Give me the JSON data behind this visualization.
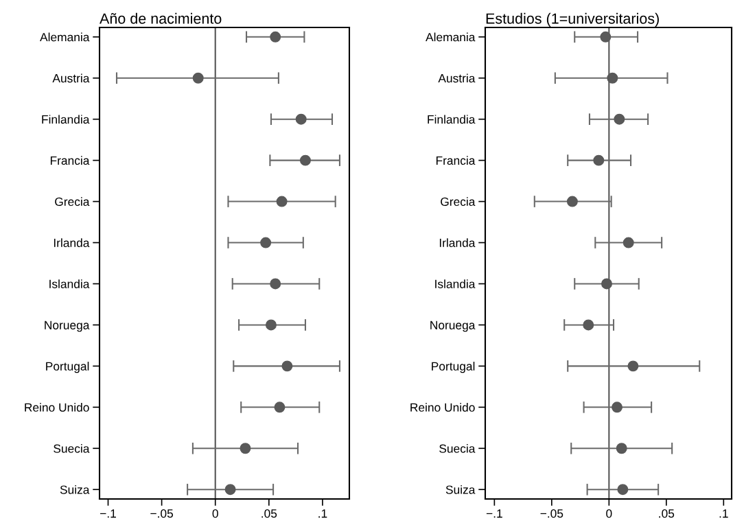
{
  "chart_data": [
    {
      "type": "scatter",
      "orientation": "horizontal",
      "title": "Año de nacimiento",
      "categories": [
        "Alemania",
        "Austria",
        "Finlandia",
        "Francia",
        "Grecia",
        "Irlanda",
        "Islandia",
        "Noruega",
        "Portugal",
        "Reino Unido",
        "Suecia",
        "Suiza"
      ],
      "series": [
        {
          "color": "#595959",
          "values": [
            0.056,
            -0.016,
            0.08,
            0.084,
            0.062,
            0.047,
            0.056,
            0.052,
            0.067,
            0.06,
            0.028,
            0.014
          ],
          "errors": [
            [
              0.029,
              0.083
            ],
            [
              -0.092,
              0.059
            ],
            [
              0.052,
              0.109
            ],
            [
              0.051,
              0.116
            ],
            [
              0.012,
              0.112
            ],
            [
              0.012,
              0.082
            ],
            [
              0.016,
              0.097
            ],
            [
              0.022,
              0.084
            ],
            [
              0.017,
              0.116
            ],
            [
              0.024,
              0.097
            ],
            [
              -0.021,
              0.077
            ],
            [
              -0.026,
              0.054
            ]
          ]
        }
      ],
      "xlim": [
        -0.108,
        0.125
      ],
      "xticks": [
        {
          "value": -0.1,
          "label": "−.1"
        },
        {
          "value": -0.05,
          "label": "−.05"
        },
        {
          "value": 0,
          "label": "0"
        },
        {
          "value": 0.05,
          "label": ".05"
        },
        {
          "value": 0.1,
          "label": ".1"
        }
      ],
      "ref_lines": [
        {
          "axis": "x",
          "value": 0,
          "color": "#555555"
        }
      ],
      "marker": "circle",
      "grid": false,
      "legend": false
    },
    {
      "type": "scatter",
      "orientation": "horizontal",
      "title": "Estudios (1=universitarios)",
      "categories": [
        "Alemania",
        "Austria",
        "Finlandia",
        "Francia",
        "Grecia",
        "Irlanda",
        "Islandia",
        "Noruega",
        "Portugal",
        "Reino Unido",
        "Suecia",
        "Suiza"
      ],
      "series": [
        {
          "color": "#595959",
          "values": [
            -0.003,
            0.003,
            0.009,
            -0.009,
            -0.032,
            0.017,
            -0.002,
            -0.018,
            0.021,
            0.007,
            0.011,
            0.012
          ],
          "errors": [
            [
              -0.03,
              0.025
            ],
            [
              -0.047,
              0.051
            ],
            [
              -0.017,
              0.034
            ],
            [
              -0.036,
              0.019
            ],
            [
              -0.065,
              0.002
            ],
            [
              -0.012,
              0.046
            ],
            [
              -0.03,
              0.026
            ],
            [
              -0.039,
              0.004
            ],
            [
              -0.036,
              0.079
            ],
            [
              -0.022,
              0.037
            ],
            [
              -0.033,
              0.055
            ],
            [
              -0.019,
              0.043
            ]
          ]
        }
      ],
      "xlim": [
        -0.108,
        0.107
      ],
      "xticks": [
        {
          "value": -0.1,
          "label": "−.1"
        },
        {
          "value": -0.05,
          "label": "−.05"
        },
        {
          "value": 0,
          "label": "0"
        },
        {
          "value": 0.05,
          "label": ".05"
        },
        {
          "value": 0.1,
          "label": ".1"
        }
      ],
      "ref_lines": [
        {
          "axis": "x",
          "value": 0,
          "color": "#555555"
        }
      ],
      "marker": "circle",
      "grid": false,
      "legend": false
    }
  ]
}
